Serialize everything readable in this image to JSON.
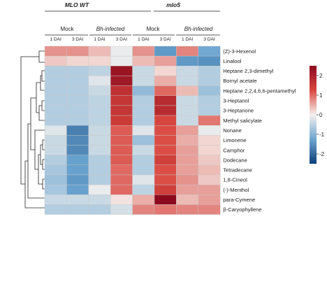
{
  "chart_data": {
    "type": "heatmap",
    "groups": [
      {
        "label": "MLO WT",
        "subgroups": [
          {
            "label": "Mock",
            "columns": [
              "1 DAI",
              "3 DAI"
            ]
          },
          {
            "label": "Bh-infected",
            "columns": [
              "1 DAI",
              "3 DAI"
            ]
          }
        ]
      },
      {
        "label": "mlo5",
        "subgroups": [
          {
            "label": "Mock",
            "columns": [
              "1 DAI",
              "3 DAI"
            ]
          },
          {
            "label": "Bh-infected",
            "columns": [
              "1 DAI",
              "3 DAI"
            ]
          }
        ]
      }
    ],
    "rows": [
      {
        "label": "(Z)-3-Hexenol",
        "values": [
          0.7,
          0.7,
          0.4,
          -0.1,
          0.7,
          -1.4,
          0.8,
          -1.2
        ]
      },
      {
        "label": "Linalool",
        "values": [
          0.3,
          0.2,
          0.2,
          -0.1,
          0.4,
          0.6,
          -1.4,
          -1.5
        ]
      },
      {
        "label": "Heptane 2,3-dimethyl",
        "values": [
          -0.6,
          -0.6,
          -0.5,
          2.3,
          -0.4,
          0.2,
          -0.4,
          -0.6
        ]
      },
      {
        "label": "Bornyl acetate",
        "values": [
          -0.6,
          -0.6,
          -0.2,
          2.2,
          -0.4,
          0.5,
          -0.4,
          -0.6
        ]
      },
      {
        "label": "Heptane 2,2,4,6,6-pentamethyl",
        "values": [
          -0.6,
          -0.6,
          -0.4,
          1.7,
          -0.9,
          1.0,
          0.4,
          -0.8
        ]
      },
      {
        "label": "3-Heptanol",
        "values": [
          -0.6,
          -0.6,
          -0.5,
          1.6,
          -0.6,
          1.8,
          -0.4,
          -0.6
        ]
      },
      {
        "label": "3-Heptanone",
        "values": [
          -0.6,
          -0.6,
          -0.5,
          1.6,
          -0.6,
          1.8,
          -0.4,
          -0.6
        ]
      },
      {
        "label": "Methyl salicylate",
        "values": [
          -0.6,
          -0.6,
          -0.5,
          1.5,
          -0.6,
          1.3,
          -0.4,
          0.9
        ]
      },
      {
        "label": "Nonane",
        "values": [
          -0.2,
          -1.7,
          -0.4,
          1.1,
          -0.2,
          1.2,
          0.6,
          -0.1
        ]
      },
      {
        "label": "Limonene",
        "values": [
          -0.4,
          -1.6,
          -0.4,
          1.1,
          -0.8,
          1.2,
          0.5,
          0.2
        ]
      },
      {
        "label": "Camphor",
        "values": [
          -0.4,
          -1.6,
          -0.4,
          1.1,
          -0.4,
          1.2,
          0.6,
          0.2
        ]
      },
      {
        "label": "Dodecane",
        "values": [
          -0.6,
          -1.3,
          -0.6,
          1.1,
          -0.6,
          1.4,
          0.6,
          0.3
        ]
      },
      {
        "label": "Tetradecane",
        "values": [
          -0.7,
          -1.3,
          -0.6,
          1.0,
          -0.6,
          1.2,
          0.6,
          0.4
        ]
      },
      {
        "label": "1,8-Cineol",
        "values": [
          -0.8,
          -1.4,
          -0.6,
          1.0,
          -0.2,
          1.2,
          0.7,
          0.3
        ]
      },
      {
        "label": "(-)-Menthol",
        "values": [
          -0.7,
          -1.3,
          -0.1,
          1.0,
          -0.5,
          1.4,
          0.6,
          0.6
        ]
      },
      {
        "label": "para-Cymene",
        "values": [
          -0.4,
          -0.4,
          -0.4,
          0.1,
          0.5,
          2.5,
          0.4,
          0.6
        ]
      },
      {
        "label": "β-Caryophyllene",
        "values": [
          -0.6,
          -0.6,
          -0.6,
          -0.3,
          0.8,
          0.9,
          0.8,
          0.8
        ]
      }
    ],
    "colorbar": {
      "ticks": [
        "2",
        "1",
        "0",
        "-1",
        "-2"
      ],
      "range": [
        -2.5,
        2.5
      ]
    }
  }
}
